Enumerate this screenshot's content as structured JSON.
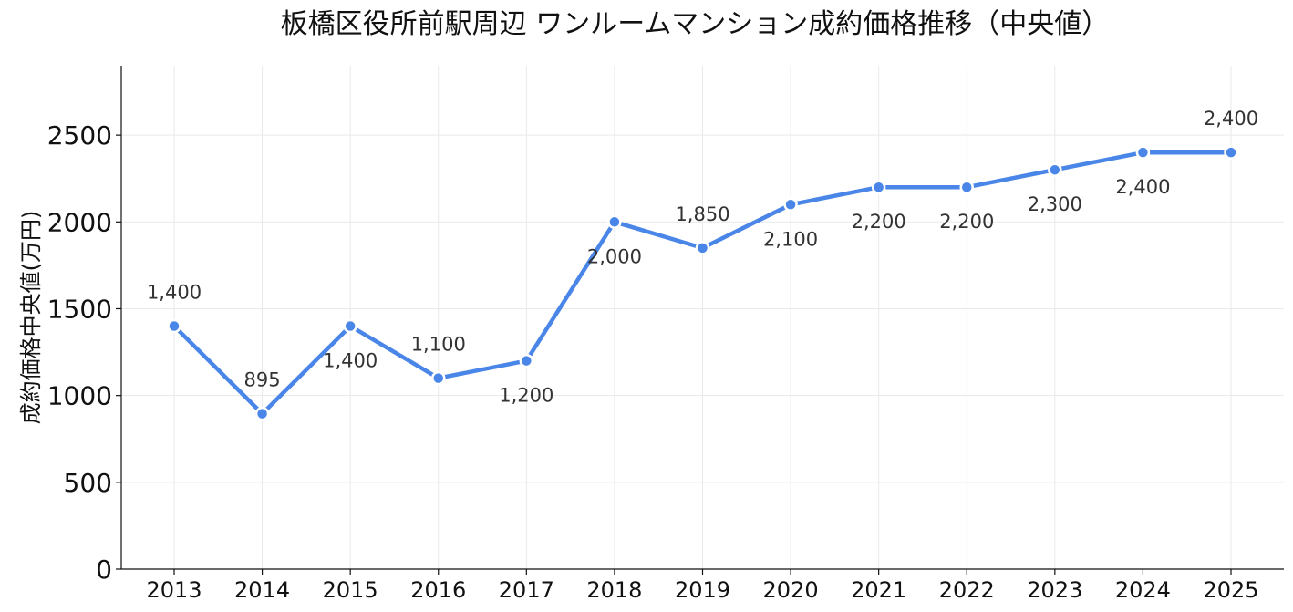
{
  "chart_data": {
    "type": "line",
    "title": "板橋区役所前駅周辺 ワンルームマンション成約価格推移（中央値）",
    "xlabel": "",
    "ylabel": "成約価格中央値(万円)",
    "categories": [
      "2013",
      "2014",
      "2015",
      "2016",
      "2017",
      "2018",
      "2019",
      "2020",
      "2021",
      "2022",
      "2023",
      "2024",
      "2025"
    ],
    "series": [
      {
        "values": [
          1400,
          895,
          1400,
          1100,
          1200,
          2000,
          1850,
          2100,
          2200,
          2200,
          2300,
          2400,
          2400
        ],
        "color": "#4a86e8"
      }
    ],
    "data_labels": [
      "1,400",
      "895",
      "1,400",
      "1,100",
      "1,200",
      "2,000",
      "1,850",
      "2,100",
      "2,200",
      "2,200",
      "2,300",
      "2,400",
      "2,400"
    ],
    "yticks": [
      0,
      500,
      1000,
      1500,
      2000,
      2500
    ],
    "ylim": [
      0,
      2900
    ],
    "grid": true,
    "legend": "none"
  }
}
